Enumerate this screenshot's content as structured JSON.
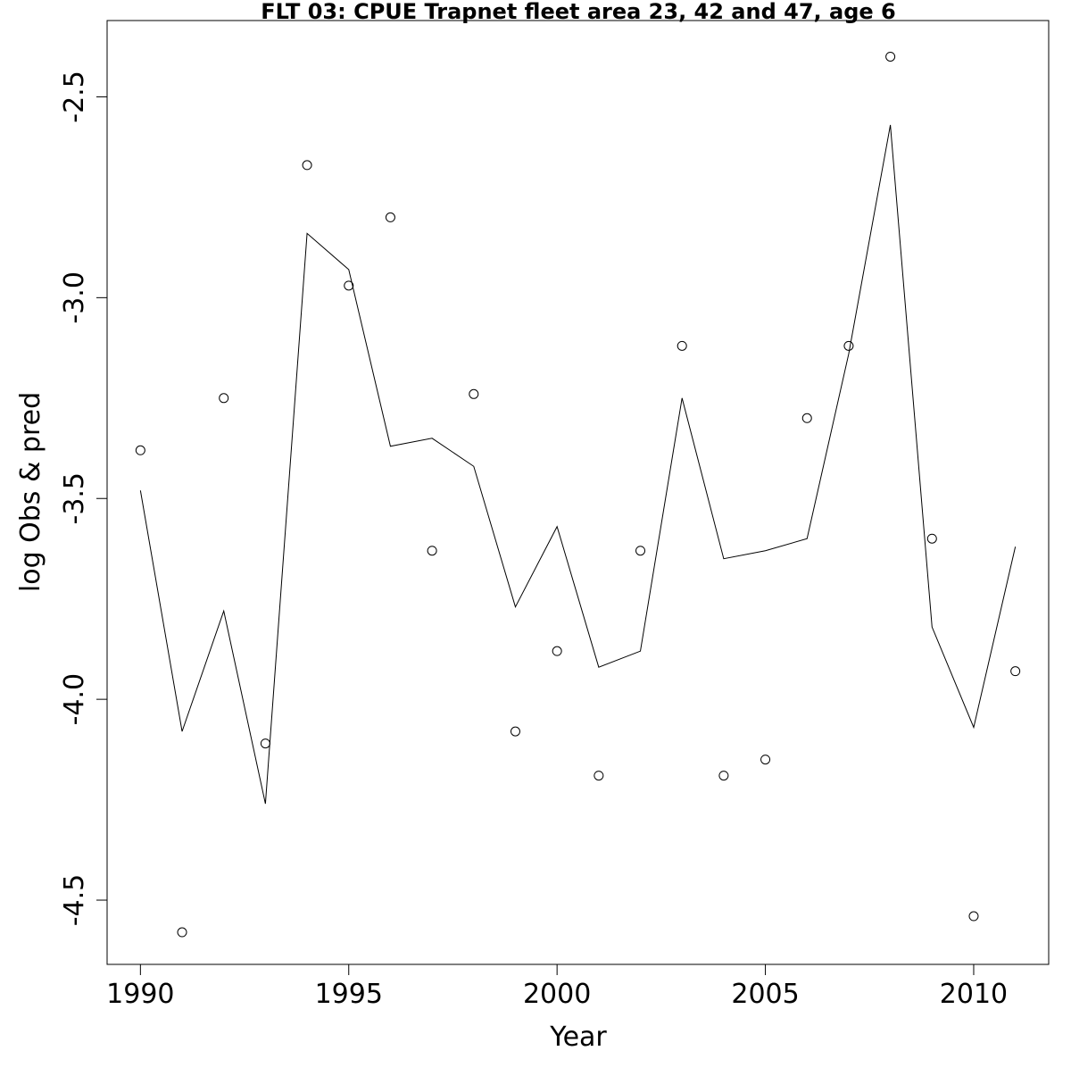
{
  "chart_data": {
    "type": "line",
    "title": "FLT 03: CPUE Trapnet fleet area 23, 42 and 47, age 6",
    "xlabel": "Year",
    "ylabel": "log Obs & pred",
    "xlim": [
      1989.2,
      2011.8
    ],
    "ylim": [
      -4.66,
      -2.31
    ],
    "x_ticks": [
      1990,
      1995,
      2000,
      2005,
      2010
    ],
    "x_tick_labels": [
      "1990",
      "1995",
      "2000",
      "2005",
      "2010"
    ],
    "y_ticks": [
      -4.5,
      -4.0,
      -3.5,
      -3.0,
      -2.5
    ],
    "y_tick_labels": [
      "-4.5",
      "-4.0",
      "-3.5",
      "-3.0",
      "-2.5"
    ],
    "grid": false,
    "legend": false,
    "x": [
      1990,
      1991,
      1992,
      1993,
      1994,
      1995,
      1996,
      1997,
      1998,
      1999,
      2000,
      2001,
      2002,
      2003,
      2004,
      2005,
      2006,
      2007,
      2008,
      2009,
      2010,
      2011
    ],
    "series": [
      {
        "style": "points",
        "marker": "open-circle",
        "values": [
          -3.38,
          -4.58,
          -3.25,
          -4.11,
          -2.67,
          -2.97,
          -2.8,
          -3.63,
          -3.24,
          -4.08,
          -3.88,
          -4.19,
          -3.63,
          -3.12,
          -4.19,
          -4.15,
          -3.3,
          -3.12,
          -2.4,
          -3.6,
          -4.54,
          -3.93
        ]
      },
      {
        "style": "line",
        "values": [
          -3.48,
          -4.08,
          -3.78,
          -4.26,
          -2.84,
          -2.93,
          -3.37,
          -3.35,
          -3.42,
          -3.77,
          -3.57,
          -3.92,
          -3.88,
          -3.25,
          -3.65,
          -3.63,
          -3.6,
          -3.14,
          -2.57,
          -3.82,
          -4.07,
          -3.62
        ]
      }
    ]
  }
}
